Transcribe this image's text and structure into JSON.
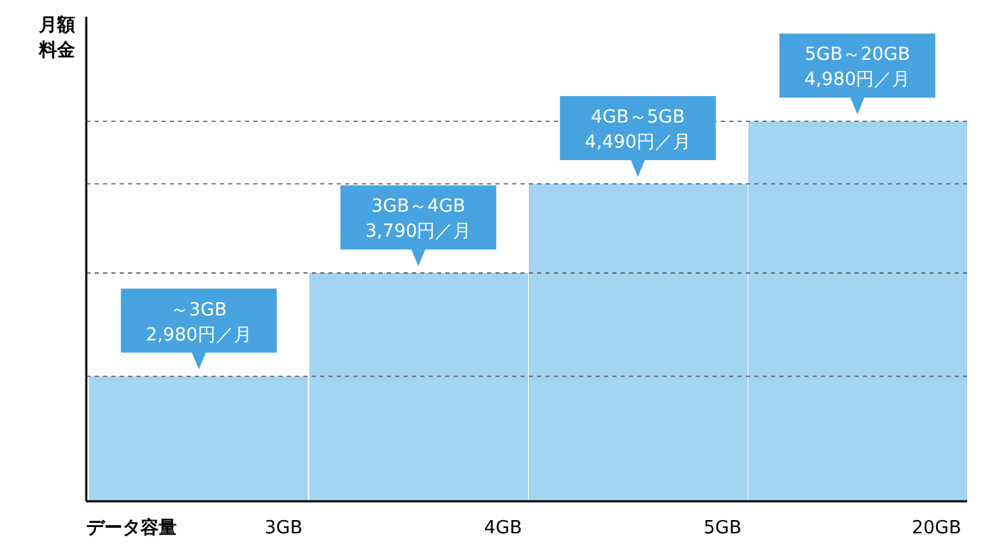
{
  "chart_data": {
    "type": "bar",
    "xlabel": "データ容量",
    "ylabel": "月額料金",
    "categories": [
      "3GB",
      "4GB",
      "5GB",
      "20GB"
    ],
    "values": [
      2980,
      3790,
      4490,
      4980
    ],
    "value_labels": [
      "～3GB\n2,980円／月",
      "3GB～4GB\n3,790円／月",
      "4GB～5GB\n4,490円／月",
      "5GB～20GB\n4,980円／月"
    ],
    "color": "#a3d4f2",
    "ylim": [
      2000,
      5800
    ],
    "yticks": [
      {
        "value": 2980,
        "label": null
      },
      {
        "value": 3790,
        "label": null
      },
      {
        "value": 4490,
        "label": null
      },
      {
        "value": 4980,
        "label": null
      }
    ],
    "grid": "y",
    "tick_labels": "x"
  }
}
